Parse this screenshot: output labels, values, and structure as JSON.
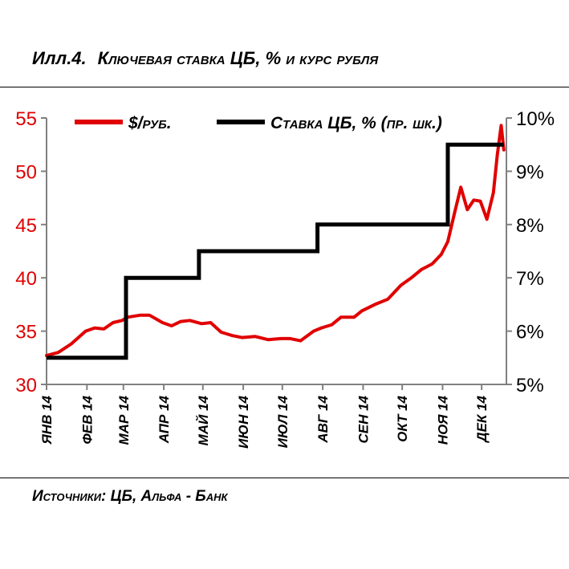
{
  "header": {
    "figure_number": "Илл.4.",
    "title": "Ключевая ставка ЦБ, % и курс рубля"
  },
  "footer": {
    "source": "Источники: ЦБ, Альфа - Банк"
  },
  "colors": {
    "usd_rub": "#e00000",
    "key_rate": "#000000",
    "axis": "#808080"
  },
  "chart_data": {
    "type": "line",
    "title": "Ключевая ставка ЦБ, % и курс рубля",
    "x_tick_labels": [
      "ЯНВ 14",
      "ФЕВ 14",
      "МАР 14",
      "АПР 14",
      "МАЙ 14",
      "ИЮН 14",
      "ИЮЛ 14",
      "АВГ 14",
      "СЕН 14",
      "ОКТ 14",
      "НОЯ 14",
      "ДЕК 14"
    ],
    "y_left": {
      "ticks": [
        "30",
        "35",
        "40",
        "45",
        "50",
        "55"
      ],
      "range": [
        30,
        55
      ]
    },
    "y_right": {
      "ticks": [
        "5%",
        "6%",
        "7%",
        "8%",
        "9%",
        "10%"
      ],
      "range": [
        5,
        10
      ]
    },
    "legend_position": "top",
    "grid": false,
    "series": [
      {
        "name": "$/руб.",
        "axis": "left",
        "x": [
          "2014-01-01",
          "2014-01-10",
          "2014-01-20",
          "2014-01-31",
          "2014-02-07",
          "2014-02-14",
          "2014-02-21",
          "2014-02-28",
          "2014-03-04",
          "2014-03-14",
          "2014-03-21",
          "2014-03-31",
          "2014-04-07",
          "2014-04-14",
          "2014-04-21",
          "2014-04-30",
          "2014-05-07",
          "2014-05-15",
          "2014-05-23",
          "2014-05-31",
          "2014-06-10",
          "2014-06-20",
          "2014-06-30",
          "2014-07-07",
          "2014-07-15",
          "2014-07-25",
          "2014-07-31",
          "2014-08-08",
          "2014-08-15",
          "2014-08-25",
          "2014-08-31",
          "2014-09-10",
          "2014-09-20",
          "2014-09-30",
          "2014-10-08",
          "2014-10-16",
          "2014-10-24",
          "2014-10-31",
          "2014-11-05",
          "2014-11-10",
          "2014-11-15",
          "2014-11-20",
          "2014-11-25",
          "2014-11-30",
          "2014-12-05",
          "2014-12-10",
          "2014-12-13",
          "2014-12-16",
          "2014-12-18"
        ],
        "values": [
          32.7,
          33.0,
          33.8,
          35.0,
          35.3,
          35.2,
          35.8,
          36.0,
          36.3,
          36.5,
          36.5,
          35.8,
          35.5,
          35.9,
          36.0,
          35.7,
          35.8,
          34.9,
          34.6,
          34.4,
          34.5,
          34.2,
          34.3,
          34.3,
          34.1,
          35.0,
          35.3,
          35.6,
          36.3,
          36.3,
          36.9,
          37.5,
          38.0,
          39.3,
          40.0,
          40.8,
          41.3,
          42.2,
          43.4,
          46.0,
          48.5,
          46.4,
          47.3,
          47.2,
          45.5,
          48.0,
          51.5,
          54.3,
          52.0
        ]
      },
      {
        "name": "Ставка ЦБ, % (пр. шк.)",
        "axis": "right",
        "step": true,
        "x": [
          "2014-01-01",
          "2014-03-03",
          "2014-04-28",
          "2014-07-28",
          "2014-11-05",
          "2014-12-18"
        ],
        "values": [
          5.5,
          7.0,
          7.5,
          8.0,
          9.5,
          9.5
        ]
      }
    ]
  }
}
